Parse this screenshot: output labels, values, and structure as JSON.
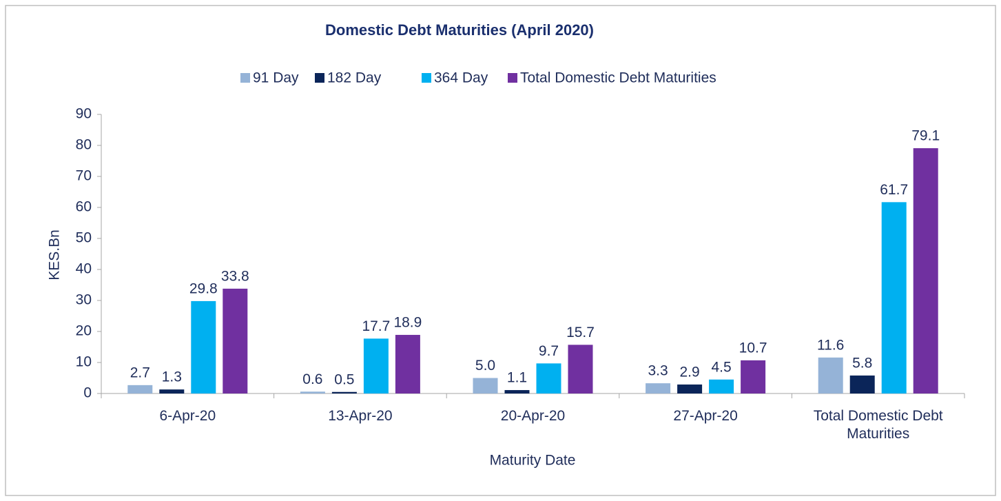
{
  "chart_data": {
    "type": "bar",
    "title": "Domestic Debt Maturities (April 2020)",
    "x_label": "Maturity Date",
    "y_label": "KES.Bn",
    "categories": [
      "6-Apr-20",
      "13-Apr-20",
      "20-Apr-20",
      "27-Apr-20",
      "Total Domestic Debt Maturities"
    ],
    "series": [
      {
        "name": "91 Day",
        "color": "#95b3d7",
        "values": [
          2.7,
          0.6,
          5.0,
          3.3,
          11.6
        ],
        "value_labels": [
          "2.7",
          "0.6",
          "5.0",
          "3.3",
          "11.6"
        ]
      },
      {
        "name": "182 Day",
        "color": "#0b2559",
        "values": [
          1.3,
          0.5,
          1.1,
          2.9,
          5.8
        ],
        "value_labels": [
          "1.3",
          "0.5",
          "1.1",
          "2.9",
          "5.8"
        ]
      },
      {
        "name": "364 Day",
        "color": "#00b0f0",
        "values": [
          29.8,
          17.7,
          9.7,
          4.5,
          61.7
        ],
        "value_labels": [
          "29.8",
          "17.7",
          "9.7",
          "4.5",
          "61.7"
        ]
      },
      {
        "name": "Total Domestic Debt Maturities",
        "color": "#7030a0",
        "values": [
          33.8,
          18.9,
          15.7,
          10.7,
          79.1
        ],
        "value_labels": [
          "33.8",
          "18.9",
          "15.7",
          "10.7",
          "79.1"
        ]
      }
    ],
    "ylim": [
      0,
      90
    ],
    "yticks": [
      0,
      10,
      20,
      30,
      40,
      50,
      60,
      70,
      80,
      90
    ],
    "legend": "top"
  }
}
